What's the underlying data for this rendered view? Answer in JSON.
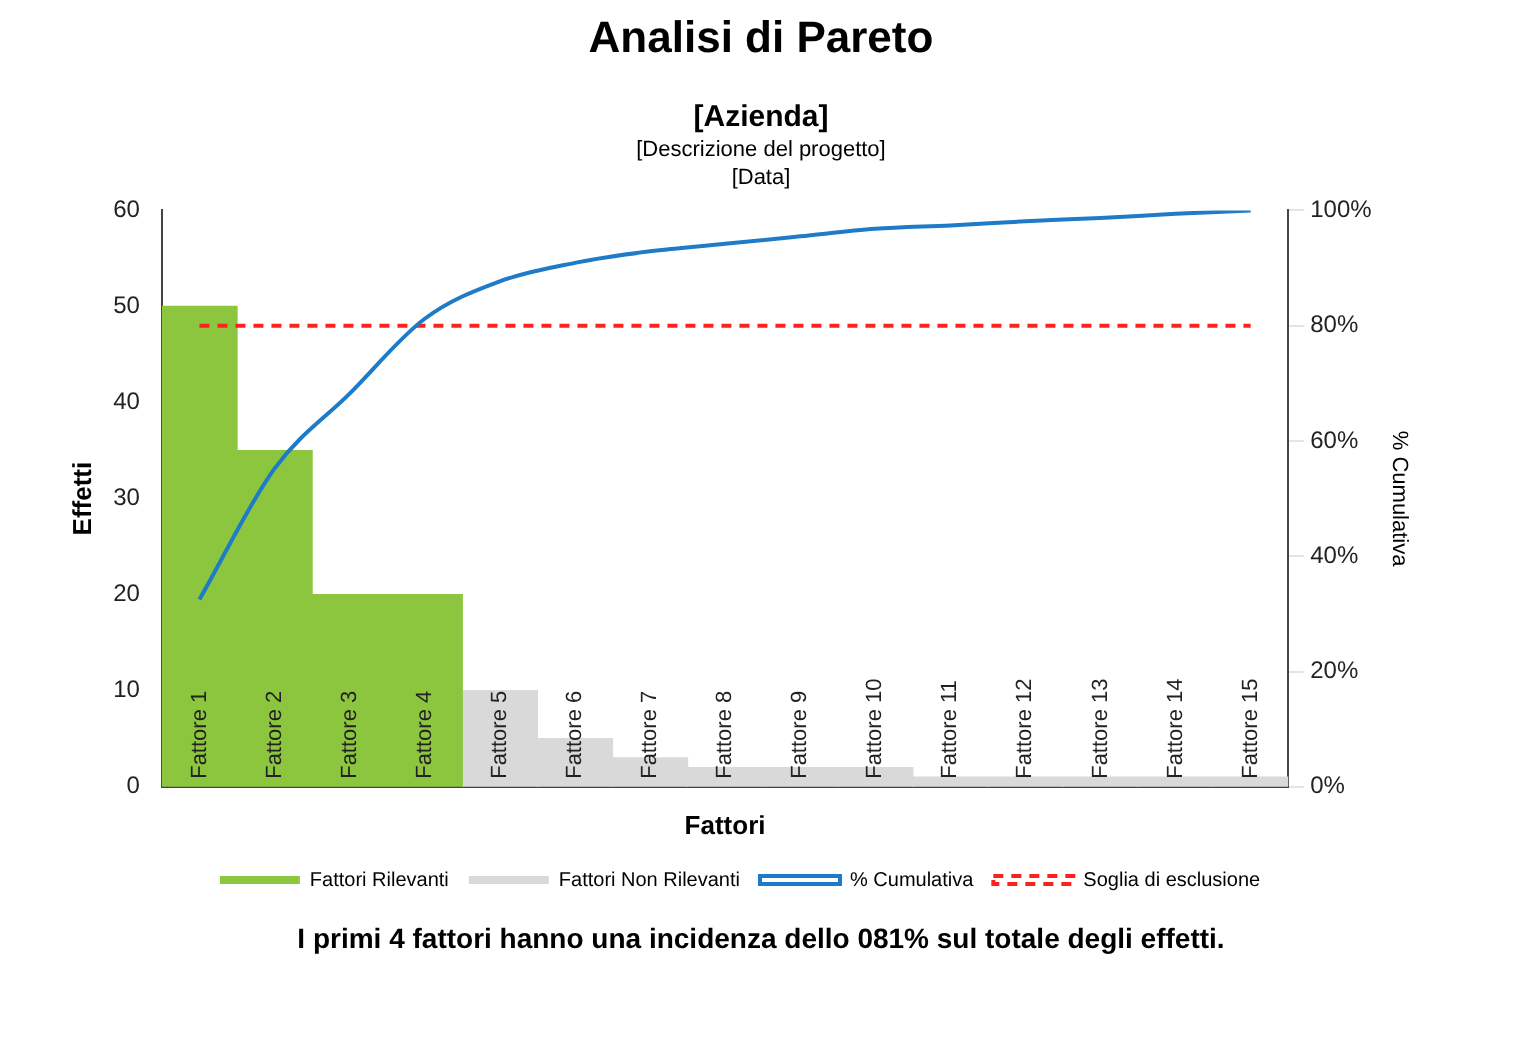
{
  "chart_data": {
    "type": "bar",
    "title": "Analisi di Pareto",
    "subtitle": "[Azienda]",
    "annotations": [
      "[Descrizione del progetto]",
      "[Data]",
      "I primi 4 fattori hanno una incidenza dello 081% sul totale degli effetti."
    ],
    "categories": [
      "Fattore 1",
      "Fattore 2",
      "Fattore 3",
      "Fattore 4",
      "Fattore 5",
      "Fattore 6",
      "Fattore 7",
      "Fattore 8",
      "Fattore 9",
      "Fattore 10",
      "Fattore 11",
      "Fattore 12",
      "Fattore 13",
      "Fattore 14",
      "Fattore 15"
    ],
    "xlabel": "Fattori",
    "ylabel": "Effetti",
    "y2label": "% Cumulativa",
    "stacked": true,
    "series": [
      {
        "name": "Fattori Rilevanti",
        "color": "#8cc63e",
        "values": [
          50,
          35,
          20,
          20,
          null,
          null,
          null,
          null,
          null,
          null,
          null,
          null,
          null,
          null,
          null
        ]
      },
      {
        "name": "Fattori Non Rilevanti",
        "color": "#d9d9d9",
        "values": [
          null,
          null,
          null,
          null,
          10,
          5,
          3,
          2,
          2,
          2,
          1,
          1,
          1,
          1,
          1
        ]
      },
      {
        "name": "% Cumulativa",
        "type": "line",
        "axis": "y2",
        "color": "#1f7bc8",
        "values": [
          32.5,
          55.2,
          68.2,
          81.2,
          87.7,
          90.9,
          92.9,
          94.2,
          95.5,
          96.8,
          97.4,
          98.1,
          98.7,
          99.4,
          100
        ]
      },
      {
        "name": "Soglia di esclusione",
        "type": "line",
        "axis": "y2",
        "color": "#ff2020",
        "line_style": "dashed",
        "values": [
          80,
          80,
          80,
          80,
          80,
          80,
          80,
          80,
          80,
          80,
          80,
          80,
          80,
          80,
          80
        ]
      }
    ],
    "ylim": [
      0,
      60
    ],
    "yticks": [
      0,
      10,
      20,
      30,
      40,
      50,
      60
    ],
    "y2lim": [
      0,
      100
    ],
    "y2ticks": [
      {
        "value": 0,
        "label": "0%"
      },
      {
        "value": 20,
        "label": "20%"
      },
      {
        "value": 40,
        "label": "40%"
      },
      {
        "value": 60,
        "label": "60%"
      },
      {
        "value": 80,
        "label": "80%"
      },
      {
        "value": 100,
        "label": "100%"
      }
    ],
    "grid": false,
    "legend": "bottom"
  }
}
